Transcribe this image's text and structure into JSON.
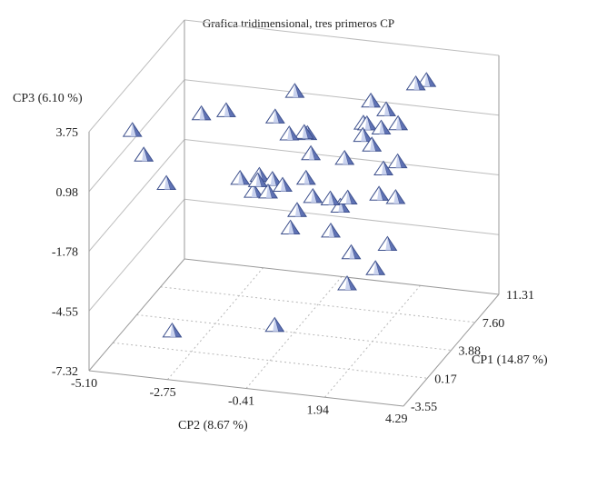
{
  "chart_data": {
    "type": "scatter",
    "title": "Grafica tridimensional, tres primeros CP",
    "xlabel": "CP2 (8.67 %)",
    "ylabel": "CP1 (14.87 %)",
    "zlabel": "CP3 (6.10 %)",
    "x_ticks": [
      "-5.10",
      "-2.75",
      "-0.41",
      "1.94",
      "4.29"
    ],
    "y_ticks": [
      "-3.55",
      "0.17",
      "3.88",
      "7.60",
      "11.31"
    ],
    "z_ticks": [
      "-7.32",
      "-4.55",
      "-1.78",
      "0.98",
      "3.75"
    ],
    "xlim": [
      -5.1,
      4.29
    ],
    "ylim": [
      -3.55,
      11.31
    ],
    "zlim": [
      -7.32,
      3.75
    ],
    "grid": true,
    "marker": "pyramid",
    "colors": {
      "marker_face": "#5f72b4",
      "marker_edge": "#3c4f8c",
      "axis": "#9a9a9a",
      "grid": "#b8b8b8"
    },
    "points": [
      {
        "x": -4.46,
        "y": -0.14,
        "z": 2.71
      },
      {
        "x": -4.12,
        "y": -0.14,
        "z": 1.63
      },
      {
        "x": -3.56,
        "y": 0.46,
        "z": 0.2
      },
      {
        "x": -3.3,
        "y": 4.55,
        "z": 2.05
      },
      {
        "x": -3.79,
        "y": 2.55,
        "z": -7.4
      },
      {
        "x": -2.67,
        "y": 5.14,
        "z": 2.1
      },
      {
        "x": -1.12,
        "y": 7.74,
        "z": 2.36
      },
      {
        "x": -1.3,
        "y": 5.62,
        "z": 1.88
      },
      {
        "x": -1.08,
        "y": 6.66,
        "z": 0.77
      },
      {
        "x": -0.79,
        "y": 7.48,
        "z": 0.6
      },
      {
        "x": -1.56,
        "y": 4.25,
        "z": -0.64
      },
      {
        "x": -1.61,
        "y": 6.81,
        "z": -1.48
      },
      {
        "x": -2.05,
        "y": 7.07,
        "z": -1.46
      },
      {
        "x": -2.63,
        "y": 7.09,
        "z": -1.71
      },
      {
        "x": -1.97,
        "y": 5.73,
        "z": -1.72
      },
      {
        "x": -1.49,
        "y": 5.51,
        "z": -1.59
      },
      {
        "x": -1.12,
        "y": 5.84,
        "z": -1.33
      },
      {
        "x": -0.68,
        "y": 7.19,
        "z": -1.4
      },
      {
        "x": -0.38,
        "y": 6.69,
        "z": -2.02
      },
      {
        "x": -0.6,
        "y": 5.39,
        "z": -2.25
      },
      {
        "x": -0.27,
        "y": 2.62,
        "z": -2.04
      },
      {
        "x": -0.63,
        "y": 7.68,
        "z": -0.42
      },
      {
        "x": -0.93,
        "y": 8.71,
        "z": 0.1
      },
      {
        "x": 0.5,
        "y": 9.98,
        "z": 0.39
      },
      {
        "x": 0.81,
        "y": 8.27,
        "z": 0.47
      },
      {
        "x": 0.62,
        "y": 10.51,
        "z": 1.25
      },
      {
        "x": 0.74,
        "y": 9.28,
        "z": 0.64
      },
      {
        "x": 1.2,
        "y": 9.87,
        "z": 1.17
      },
      {
        "x": 1.29,
        "y": 8.63,
        "z": 0.77
      },
      {
        "x": 1.18,
        "y": 7.75,
        "z": 0.27
      },
      {
        "x": 2.14,
        "y": 9.59,
        "z": 2.63
      },
      {
        "x": 2.44,
        "y": 9.68,
        "z": 2.81
      },
      {
        "x": 2.03,
        "y": 7.4,
        "z": 1.53
      },
      {
        "x": 2.52,
        "y": 4.77,
        "z": 0.77
      },
      {
        "x": 0.16,
        "y": 8.82,
        "z": -0.9
      },
      {
        "x": 0.98,
        "y": 5.03,
        "z": -1.27
      },
      {
        "x": 1.46,
        "y": 8.1,
        "z": -0.91
      },
      {
        "x": 1.73,
        "y": 6.0,
        "z": -1.3
      },
      {
        "x": 0.36,
        "y": 5.55,
        "z": -1.6
      },
      {
        "x": 0.65,
        "y": 5.58,
        "z": -1.9
      },
      {
        "x": 0.71,
        "y": 3.8,
        "z": -2.42
      },
      {
        "x": 1.53,
        "y": 2.71,
        "z": -2.9
      },
      {
        "x": 1.74,
        "y": 0.97,
        "z": -3.7
      },
      {
        "x": 2.3,
        "y": 5.61,
        "z": -1.22
      },
      {
        "x": 2.82,
        "y": 1.63,
        "z": -1.91
      },
      {
        "x": 2.8,
        "y": -0.14,
        "z": -2.42
      },
      {
        "x": 0.08,
        "y": -1.65,
        "z": -5.0
      }
    ]
  }
}
